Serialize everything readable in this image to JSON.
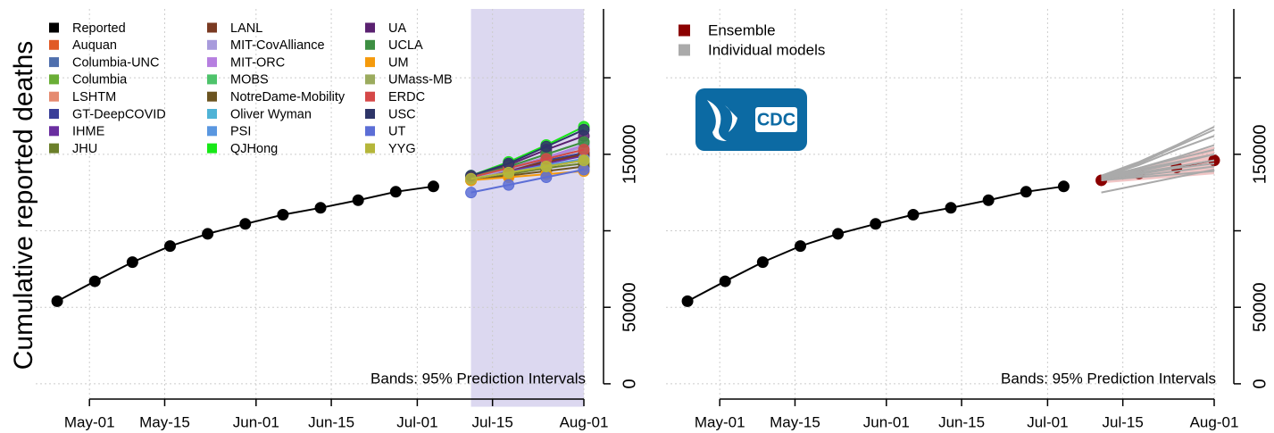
{
  "logo": {
    "text": "CDC"
  },
  "chart_data": [
    {
      "type": "line",
      "ylabel": "Cumulative reported deaths",
      "annotation": "Bands: 95% Prediction Intervals",
      "xlim": [
        "04-21",
        "08-01"
      ],
      "ylim": [
        -15000,
        245000
      ],
      "xticks": [
        {
          "value": "05-01",
          "label": "May-01"
        },
        {
          "value": "05-15",
          "label": "May-15"
        },
        {
          "value": "06-01",
          "label": "Jun-01"
        },
        {
          "value": "06-15",
          "label": "Jun-15"
        },
        {
          "value": "07-01",
          "label": "Jul-01"
        },
        {
          "value": "07-15",
          "label": "Jul-15"
        },
        {
          "value": "08-01",
          "label": "Aug-01"
        }
      ],
      "yticks": [
        0,
        50000,
        150000
      ],
      "yticks_minor": [
        100000,
        200000
      ],
      "grid": true,
      "forecast_period": [
        "07-11",
        "08-01"
      ],
      "forecast_period_color": "#dcd8f0",
      "series": [
        {
          "name": "Reported",
          "color": "#000000",
          "x": [
            "04-25",
            "05-02",
            "05-09",
            "05-16",
            "05-23",
            "05-30",
            "06-06",
            "06-13",
            "06-20",
            "06-27",
            "07-04"
          ],
          "values": [
            54000,
            67000,
            79500,
            90000,
            98000,
            104500,
            110500,
            115000,
            120000,
            125500,
            129000
          ]
        },
        {
          "name": "Auquan",
          "color": "#e15a26",
          "x": [
            "07-11",
            "07-18",
            "07-25",
            "08-01"
          ],
          "values": [
            135000,
            140000,
            145000,
            150000
          ]
        },
        {
          "name": "Columbia-UNC",
          "color": "#4f6fad",
          "x": [
            "07-11",
            "07-18",
            "07-25",
            "08-01"
          ],
          "values": [
            135000,
            141000,
            148000,
            156000
          ]
        },
        {
          "name": "Columbia",
          "color": "#6aae36",
          "x": [
            "07-11",
            "07-18",
            "07-25",
            "08-01"
          ],
          "values": [
            135000,
            142000,
            150000,
            158000
          ]
        },
        {
          "name": "LSHTM",
          "color": "#e58a6f",
          "x": [
            "07-11",
            "07-18",
            "07-25",
            "08-01"
          ],
          "values": [
            134000,
            139000,
            144000,
            150000
          ]
        },
        {
          "name": "GT-DeepCOVID",
          "color": "#3a3f99",
          "x": [
            "07-11",
            "07-18",
            "07-25",
            "08-01"
          ],
          "values": [
            135000,
            140000,
            146000,
            151000
          ]
        },
        {
          "name": "IHME",
          "color": "#6a2ea0",
          "x": [
            "07-11",
            "07-18",
            "07-25",
            "08-01"
          ],
          "values": [
            134000,
            139000,
            144000,
            149000
          ]
        },
        {
          "name": "JHU",
          "color": "#6b7f2a",
          "x": [
            "07-11",
            "07-18",
            "07-25",
            "08-01"
          ],
          "values": [
            134000,
            137000,
            141000,
            144000
          ]
        },
        {
          "name": "LANL",
          "color": "#7a3a22",
          "x": [
            "07-11",
            "07-18",
            "07-25",
            "08-01"
          ],
          "values": [
            135000,
            140000,
            145000,
            150000
          ]
        },
        {
          "name": "MIT-CovAlliance",
          "color": "#a89bdc",
          "x": [
            "07-11",
            "07-18",
            "07-25",
            "08-01"
          ],
          "values": [
            134000,
            140000,
            147000,
            155000
          ]
        },
        {
          "name": "MIT-ORC",
          "color": "#b67fe0",
          "x": [
            "07-11",
            "07-18",
            "07-25",
            "08-01"
          ],
          "values": [
            135000,
            141000,
            148000,
            156000
          ]
        },
        {
          "name": "MOBS",
          "color": "#4ec36b",
          "x": [
            "07-11",
            "07-18",
            "07-25",
            "08-01"
          ],
          "values": [
            135000,
            141000,
            147000,
            153000
          ]
        },
        {
          "name": "NotreDame-Mobility",
          "color": "#6b5420",
          "x": [
            "07-11",
            "07-18",
            "07-25",
            "08-01"
          ],
          "values": [
            133000,
            136000,
            139000,
            142000
          ]
        },
        {
          "name": "Oliver Wyman",
          "color": "#4fb3d6",
          "x": [
            "07-11",
            "07-18",
            "07-25",
            "08-01"
          ],
          "values": [
            134000,
            138000,
            142000,
            146000
          ]
        },
        {
          "name": "PSI",
          "color": "#5a97e0",
          "x": [
            "07-11",
            "07-18",
            "07-25",
            "08-01"
          ],
          "values": [
            134000,
            138000,
            143000,
            147000
          ]
        },
        {
          "name": "QJHong",
          "color": "#17e817",
          "x": [
            "07-11",
            "07-18",
            "07-25",
            "08-01"
          ],
          "values": [
            136000,
            145000,
            156000,
            168000
          ]
        },
        {
          "name": "UA",
          "color": "#5a2170",
          "x": [
            "07-11",
            "07-18",
            "07-25",
            "08-01"
          ],
          "values": [
            135000,
            143000,
            153000,
            162000
          ]
        },
        {
          "name": "UCLA",
          "color": "#3d8f43",
          "x": [
            "07-11",
            "07-18",
            "07-25",
            "08-01"
          ],
          "values": [
            135000,
            142000,
            150000,
            158000
          ]
        },
        {
          "name": "UM",
          "color": "#f59a0c",
          "x": [
            "07-11",
            "07-18",
            "07-25",
            "08-01"
          ],
          "values": [
            133000,
            135000,
            137000,
            139000
          ]
        },
        {
          "name": "UMass-MB",
          "color": "#9bab5e",
          "x": [
            "07-11",
            "07-18",
            "07-25",
            "08-01"
          ],
          "values": [
            134000,
            138000,
            142000,
            146000
          ]
        },
        {
          "name": "ERDC",
          "color": "#d54848",
          "x": [
            "07-11",
            "07-18",
            "07-25",
            "08-01"
          ],
          "values": [
            135000,
            141000,
            147000,
            153000
          ]
        },
        {
          "name": "USC",
          "color": "#2e3568",
          "x": [
            "07-11",
            "07-18",
            "07-25",
            "08-01"
          ],
          "values": [
            136000,
            144000,
            155000,
            166000
          ]
        },
        {
          "name": "UT",
          "color": "#5c6ed6",
          "x": [
            "07-11",
            "07-18",
            "07-25",
            "08-01"
          ],
          "values": [
            125000,
            130000,
            135000,
            140000
          ]
        },
        {
          "name": "YYG",
          "color": "#b5b63a",
          "x": [
            "07-11",
            "07-18",
            "07-25",
            "08-01"
          ],
          "values": [
            134000,
            138000,
            142000,
            146000
          ]
        }
      ]
    },
    {
      "type": "line",
      "annotation": "Bands: 95% Prediction Intervals",
      "xlim": [
        "04-21",
        "08-01"
      ],
      "ylim": [
        -15000,
        245000
      ],
      "xticks": [
        {
          "value": "05-01",
          "label": "May-01"
        },
        {
          "value": "05-15",
          "label": "May-15"
        },
        {
          "value": "06-01",
          "label": "Jun-01"
        },
        {
          "value": "06-15",
          "label": "Jun-15"
        },
        {
          "value": "07-01",
          "label": "Jul-01"
        },
        {
          "value": "07-15",
          "label": "Jul-15"
        },
        {
          "value": "08-01",
          "label": "Aug-01"
        }
      ],
      "yticks": [
        0,
        50000,
        150000
      ],
      "yticks_minor": [
        100000,
        200000
      ],
      "grid": true,
      "series": [
        {
          "name": "Ensemble",
          "color": "#8b0000",
          "x": [
            "07-11",
            "07-18",
            "07-25",
            "08-01"
          ],
          "values": [
            133000,
            137500,
            141500,
            146000
          ],
          "lower": [
            131000,
            133000,
            135000,
            137000
          ],
          "upper": [
            135000,
            141000,
            148000,
            155000
          ],
          "band_color": "#e8a0a0"
        },
        {
          "name": "Individual models",
          "color": "#aaaaaa",
          "x": [
            "07-11",
            "07-18",
            "07-25",
            "08-01"
          ],
          "values": [
            [
              135000,
              140000,
              145000,
              150000
            ],
            [
              135000,
              141000,
              148000,
              156000
            ],
            [
              134000,
              139000,
              144000,
              150000
            ],
            [
              134000,
              137000,
              141000,
              144000
            ],
            [
              133000,
              136000,
              139000,
              142000
            ],
            [
              136000,
              145000,
              156000,
              168000
            ],
            [
              135000,
              143000,
              153000,
              162000
            ],
            [
              133000,
              135000,
              137000,
              139000
            ],
            [
              136000,
              144000,
              155000,
              166000
            ],
            [
              125000,
              130000,
              135000,
              140000
            ],
            [
              134000,
              138000,
              142000,
              146000
            ],
            [
              135000,
              141000,
              147000,
              153000
            ]
          ]
        },
        {
          "name": "Reported",
          "in_legend": false,
          "color": "#000000",
          "x": [
            "04-25",
            "05-02",
            "05-09",
            "05-16",
            "05-23",
            "05-30",
            "06-06",
            "06-13",
            "06-20",
            "06-27",
            "07-04"
          ],
          "values": [
            54000,
            67000,
            79500,
            90000,
            98000,
            104500,
            110500,
            115000,
            120000,
            125500,
            129000
          ]
        }
      ]
    }
  ]
}
